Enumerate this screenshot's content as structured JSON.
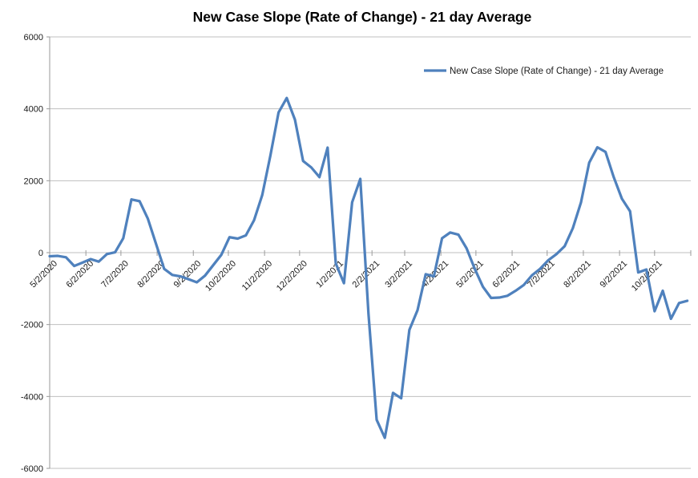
{
  "chart_data": {
    "type": "line",
    "title": "New Case Slope (Rate of Change) - 21 day Average",
    "xlabel": "",
    "ylabel": "",
    "ylim": [
      -6000,
      6000
    ],
    "ytick_step": 2000,
    "yticks": [
      6000,
      4000,
      2000,
      0,
      -2000,
      -4000,
      -6000
    ],
    "grid": "horizontal-only",
    "legend_position": "top-right-inside",
    "x_axis": {
      "start": "5/2/2020",
      "end": "11/2/2021",
      "label_rotation": -45,
      "tick_labels": [
        "5/2/2020",
        "6/2/2020",
        "7/2/2020",
        "8/2/2020",
        "9/2/2020",
        "10/2/2020",
        "11/2/2020",
        "12/2/2020",
        "1/2/2021",
        "2/2/2021",
        "3/2/2021",
        "4/2/2021",
        "5/2/2021",
        "6/2/2021",
        "7/2/2021",
        "8/2/2021",
        "9/2/2021",
        "10/2/2021"
      ]
    },
    "colors": {
      "series": "#4F81BD",
      "gridline": "#BFBFBF",
      "axis": "#9A9A9A",
      "text": "#1a1a1a",
      "background": "#FFFFFF"
    },
    "series": [
      {
        "name": "New Case Slope (Rate of Change) - 21 day Average",
        "color": "#4F81BD",
        "points": [
          {
            "date": "5/2/2020",
            "value": -100
          },
          {
            "date": "5/9/2020",
            "value": -90
          },
          {
            "date": "5/16/2020",
            "value": -130
          },
          {
            "date": "5/23/2020",
            "value": -370
          },
          {
            "date": "5/30/2020",
            "value": -280
          },
          {
            "date": "6/6/2020",
            "value": -180
          },
          {
            "date": "6/13/2020",
            "value": -250
          },
          {
            "date": "6/20/2020",
            "value": -40
          },
          {
            "date": "6/27/2020",
            "value": 10
          },
          {
            "date": "7/4/2020",
            "value": 400
          },
          {
            "date": "7/11/2020",
            "value": 1480
          },
          {
            "date": "7/18/2020",
            "value": 1430
          },
          {
            "date": "7/25/2020",
            "value": 950
          },
          {
            "date": "8/1/2020",
            "value": 250
          },
          {
            "date": "8/8/2020",
            "value": -450
          },
          {
            "date": "8/15/2020",
            "value": -620
          },
          {
            "date": "8/22/2020",
            "value": -660
          },
          {
            "date": "8/29/2020",
            "value": -740
          },
          {
            "date": "9/5/2020",
            "value": -825
          },
          {
            "date": "9/12/2020",
            "value": -640
          },
          {
            "date": "9/19/2020",
            "value": -350
          },
          {
            "date": "9/26/2020",
            "value": -60
          },
          {
            "date": "10/3/2020",
            "value": 430
          },
          {
            "date": "10/10/2020",
            "value": 390
          },
          {
            "date": "10/17/2020",
            "value": 480
          },
          {
            "date": "10/24/2020",
            "value": 900
          },
          {
            "date": "10/31/2020",
            "value": 1600
          },
          {
            "date": "11/7/2020",
            "value": 2700
          },
          {
            "date": "11/14/2020",
            "value": 3900
          },
          {
            "date": "11/21/2020",
            "value": 4300
          },
          {
            "date": "11/28/2020",
            "value": 3700
          },
          {
            "date": "12/5/2020",
            "value": 2550
          },
          {
            "date": "12/12/2020",
            "value": 2370
          },
          {
            "date": "12/19/2020",
            "value": 2100
          },
          {
            "date": "12/26/2020",
            "value": 2920
          },
          {
            "date": "1/2/2021",
            "value": -300
          },
          {
            "date": "1/9/2021",
            "value": -850
          },
          {
            "date": "1/16/2021",
            "value": 1400
          },
          {
            "date": "1/23/2021",
            "value": 2050
          },
          {
            "date": "1/30/2021",
            "value": -1700
          },
          {
            "date": "2/6/2021",
            "value": -4650
          },
          {
            "date": "2/13/2021",
            "value": -5150
          },
          {
            "date": "2/20/2021",
            "value": -3900
          },
          {
            "date": "2/27/2021",
            "value": -4050
          },
          {
            "date": "3/6/2021",
            "value": -2150
          },
          {
            "date": "3/13/2021",
            "value": -1600
          },
          {
            "date": "3/20/2021",
            "value": -600
          },
          {
            "date": "3/27/2021",
            "value": -660
          },
          {
            "date": "4/3/2021",
            "value": 400
          },
          {
            "date": "4/10/2021",
            "value": 560
          },
          {
            "date": "4/17/2021",
            "value": 500
          },
          {
            "date": "4/24/2021",
            "value": 120
          },
          {
            "date": "5/1/2021",
            "value": -450
          },
          {
            "date": "5/8/2021",
            "value": -950
          },
          {
            "date": "5/15/2021",
            "value": -1260
          },
          {
            "date": "5/22/2021",
            "value": -1250
          },
          {
            "date": "5/29/2021",
            "value": -1200
          },
          {
            "date": "6/5/2021",
            "value": -1060
          },
          {
            "date": "6/12/2021",
            "value": -900
          },
          {
            "date": "6/19/2021",
            "value": -630
          },
          {
            "date": "6/26/2021",
            "value": -450
          },
          {
            "date": "7/3/2021",
            "value": -210
          },
          {
            "date": "7/10/2021",
            "value": -40
          },
          {
            "date": "7/17/2021",
            "value": 180
          },
          {
            "date": "7/24/2021",
            "value": 680
          },
          {
            "date": "7/31/2021",
            "value": 1400
          },
          {
            "date": "8/7/2021",
            "value": 2500
          },
          {
            "date": "8/14/2021",
            "value": 2930
          },
          {
            "date": "8/21/2021",
            "value": 2800
          },
          {
            "date": "8/28/2021",
            "value": 2100
          },
          {
            "date": "9/4/2021",
            "value": 1500
          },
          {
            "date": "9/11/2021",
            "value": 1150
          },
          {
            "date": "9/18/2021",
            "value": -550
          },
          {
            "date": "9/25/2021",
            "value": -470
          },
          {
            "date": "10/2/2021",
            "value": -1630
          },
          {
            "date": "10/9/2021",
            "value": -1060
          },
          {
            "date": "10/16/2021",
            "value": -1840
          },
          {
            "date": "10/23/2021",
            "value": -1400
          },
          {
            "date": "10/30/2021",
            "value": -1340
          }
        ]
      }
    ]
  }
}
